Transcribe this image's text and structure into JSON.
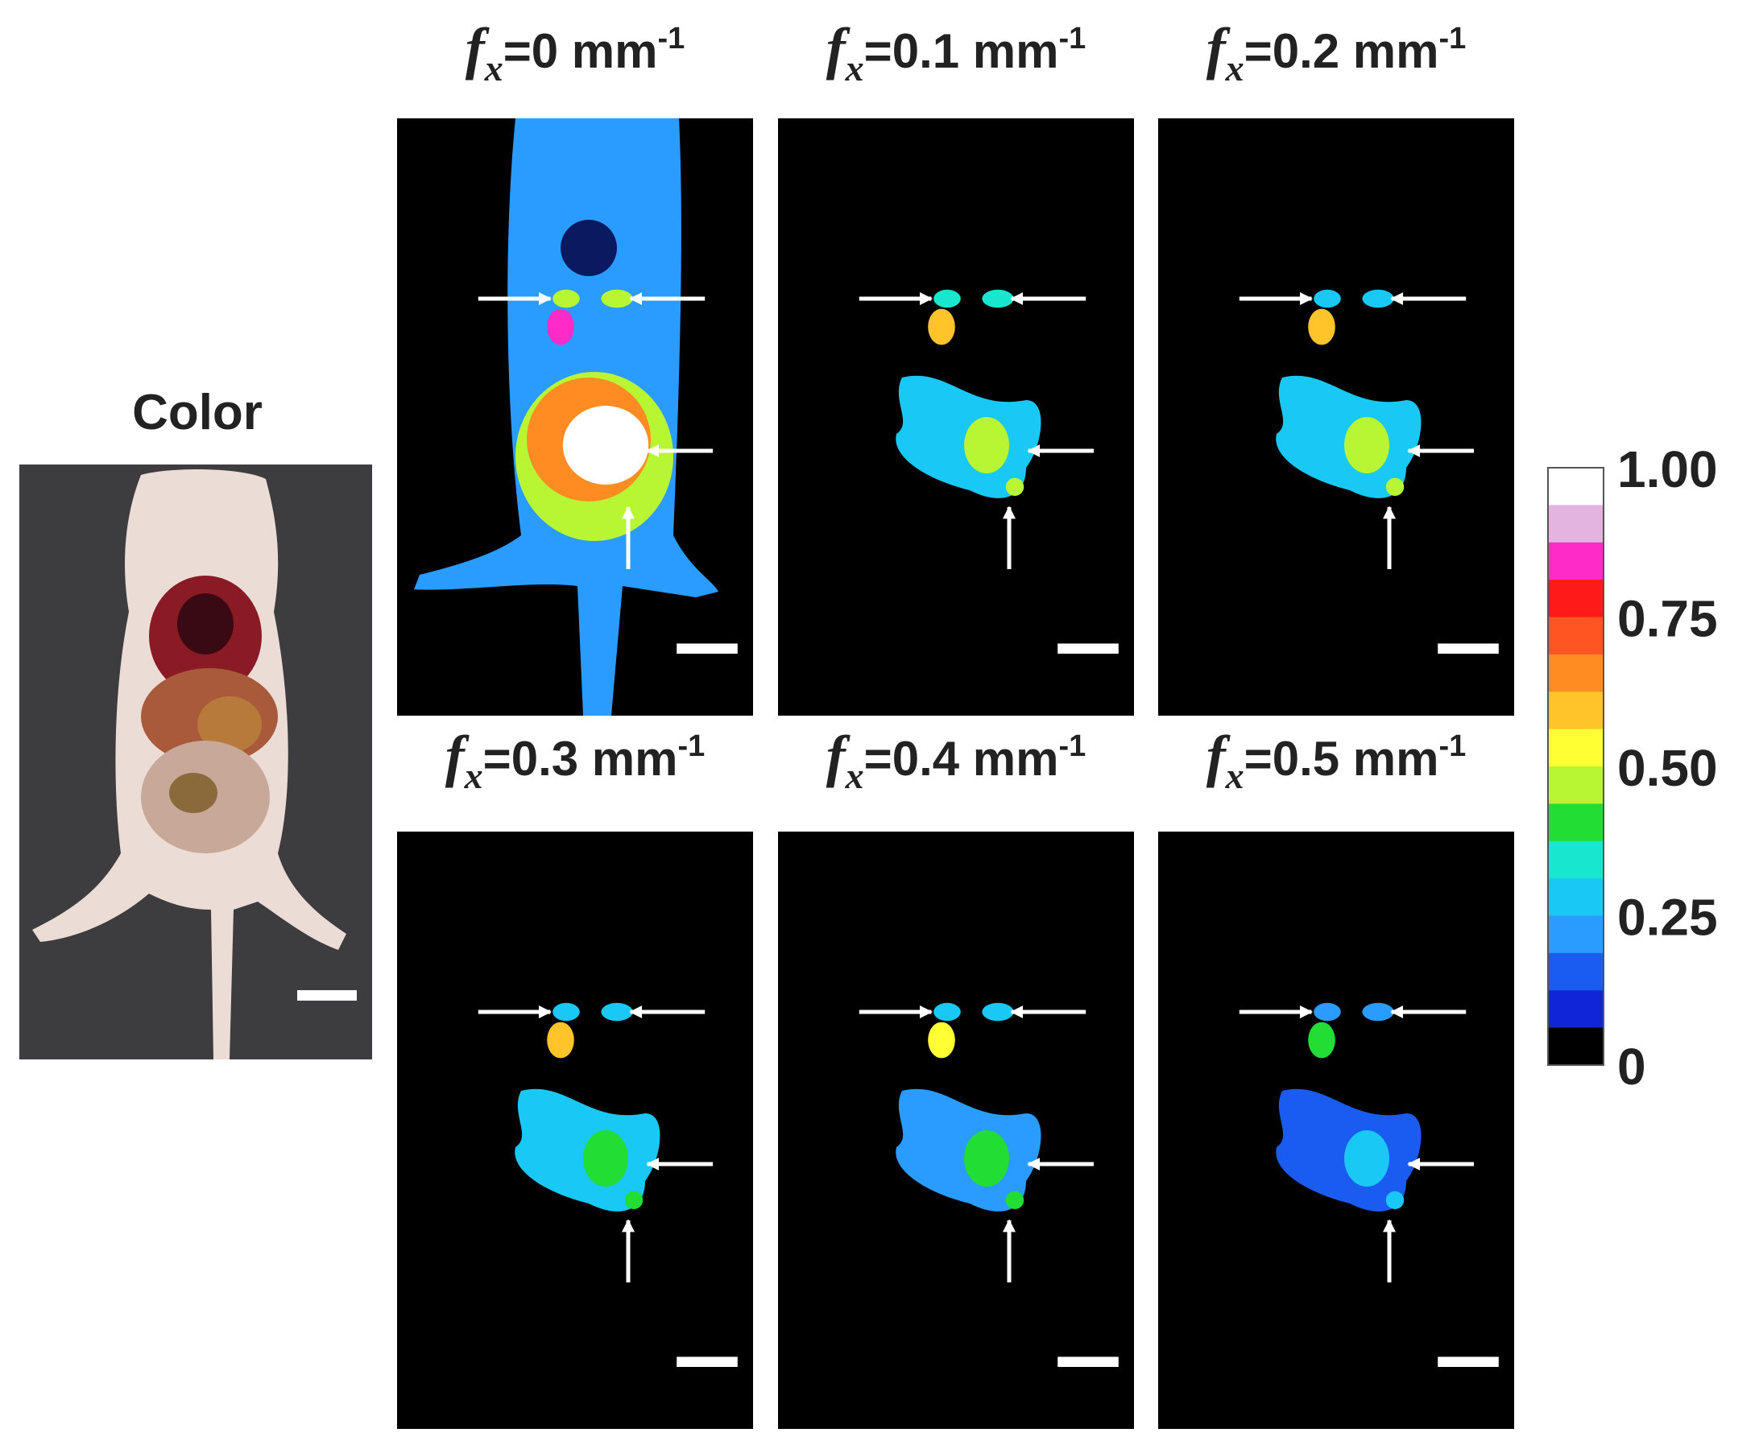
{
  "photo": {
    "title": "Color"
  },
  "panels": [
    {
      "symbol": "f",
      "subscript": "x",
      "text": "=0 mm",
      "superscript": "-1"
    },
    {
      "symbol": "f",
      "subscript": "x",
      "text": "=0.1 mm",
      "superscript": "-1"
    },
    {
      "symbol": "f",
      "subscript": "x",
      "text": "=0.2 mm",
      "superscript": "-1"
    },
    {
      "symbol": "f",
      "subscript": "x",
      "text": "=0.3 mm",
      "superscript": "-1"
    },
    {
      "symbol": "f",
      "subscript": "x",
      "text": "=0.4 mm",
      "superscript": "-1"
    },
    {
      "symbol": "f",
      "subscript": "x",
      "text": "=0.5 mm",
      "superscript": "-1"
    }
  ],
  "colorbar": {
    "ticks": [
      {
        "value": 1,
        "label": "1.00"
      },
      {
        "value": 0.75,
        "label": "0.75"
      },
      {
        "value": 0.5,
        "label": "0.50"
      },
      {
        "value": 0.25,
        "label": "0.25"
      },
      0
    ],
    "colors": [
      "#ffffff",
      "#e4b4e0",
      "#ff2bc8",
      "#ff1a1a",
      "#ff5522",
      "#ff8c22",
      "#ffc42a",
      "#ffff33",
      "#b8f533",
      "#22dd33",
      "#19e6cf",
      "#19c8f5",
      "#2a9cff",
      "#1a5cf0",
      "#1024d8",
      "#000000"
    ]
  }
}
